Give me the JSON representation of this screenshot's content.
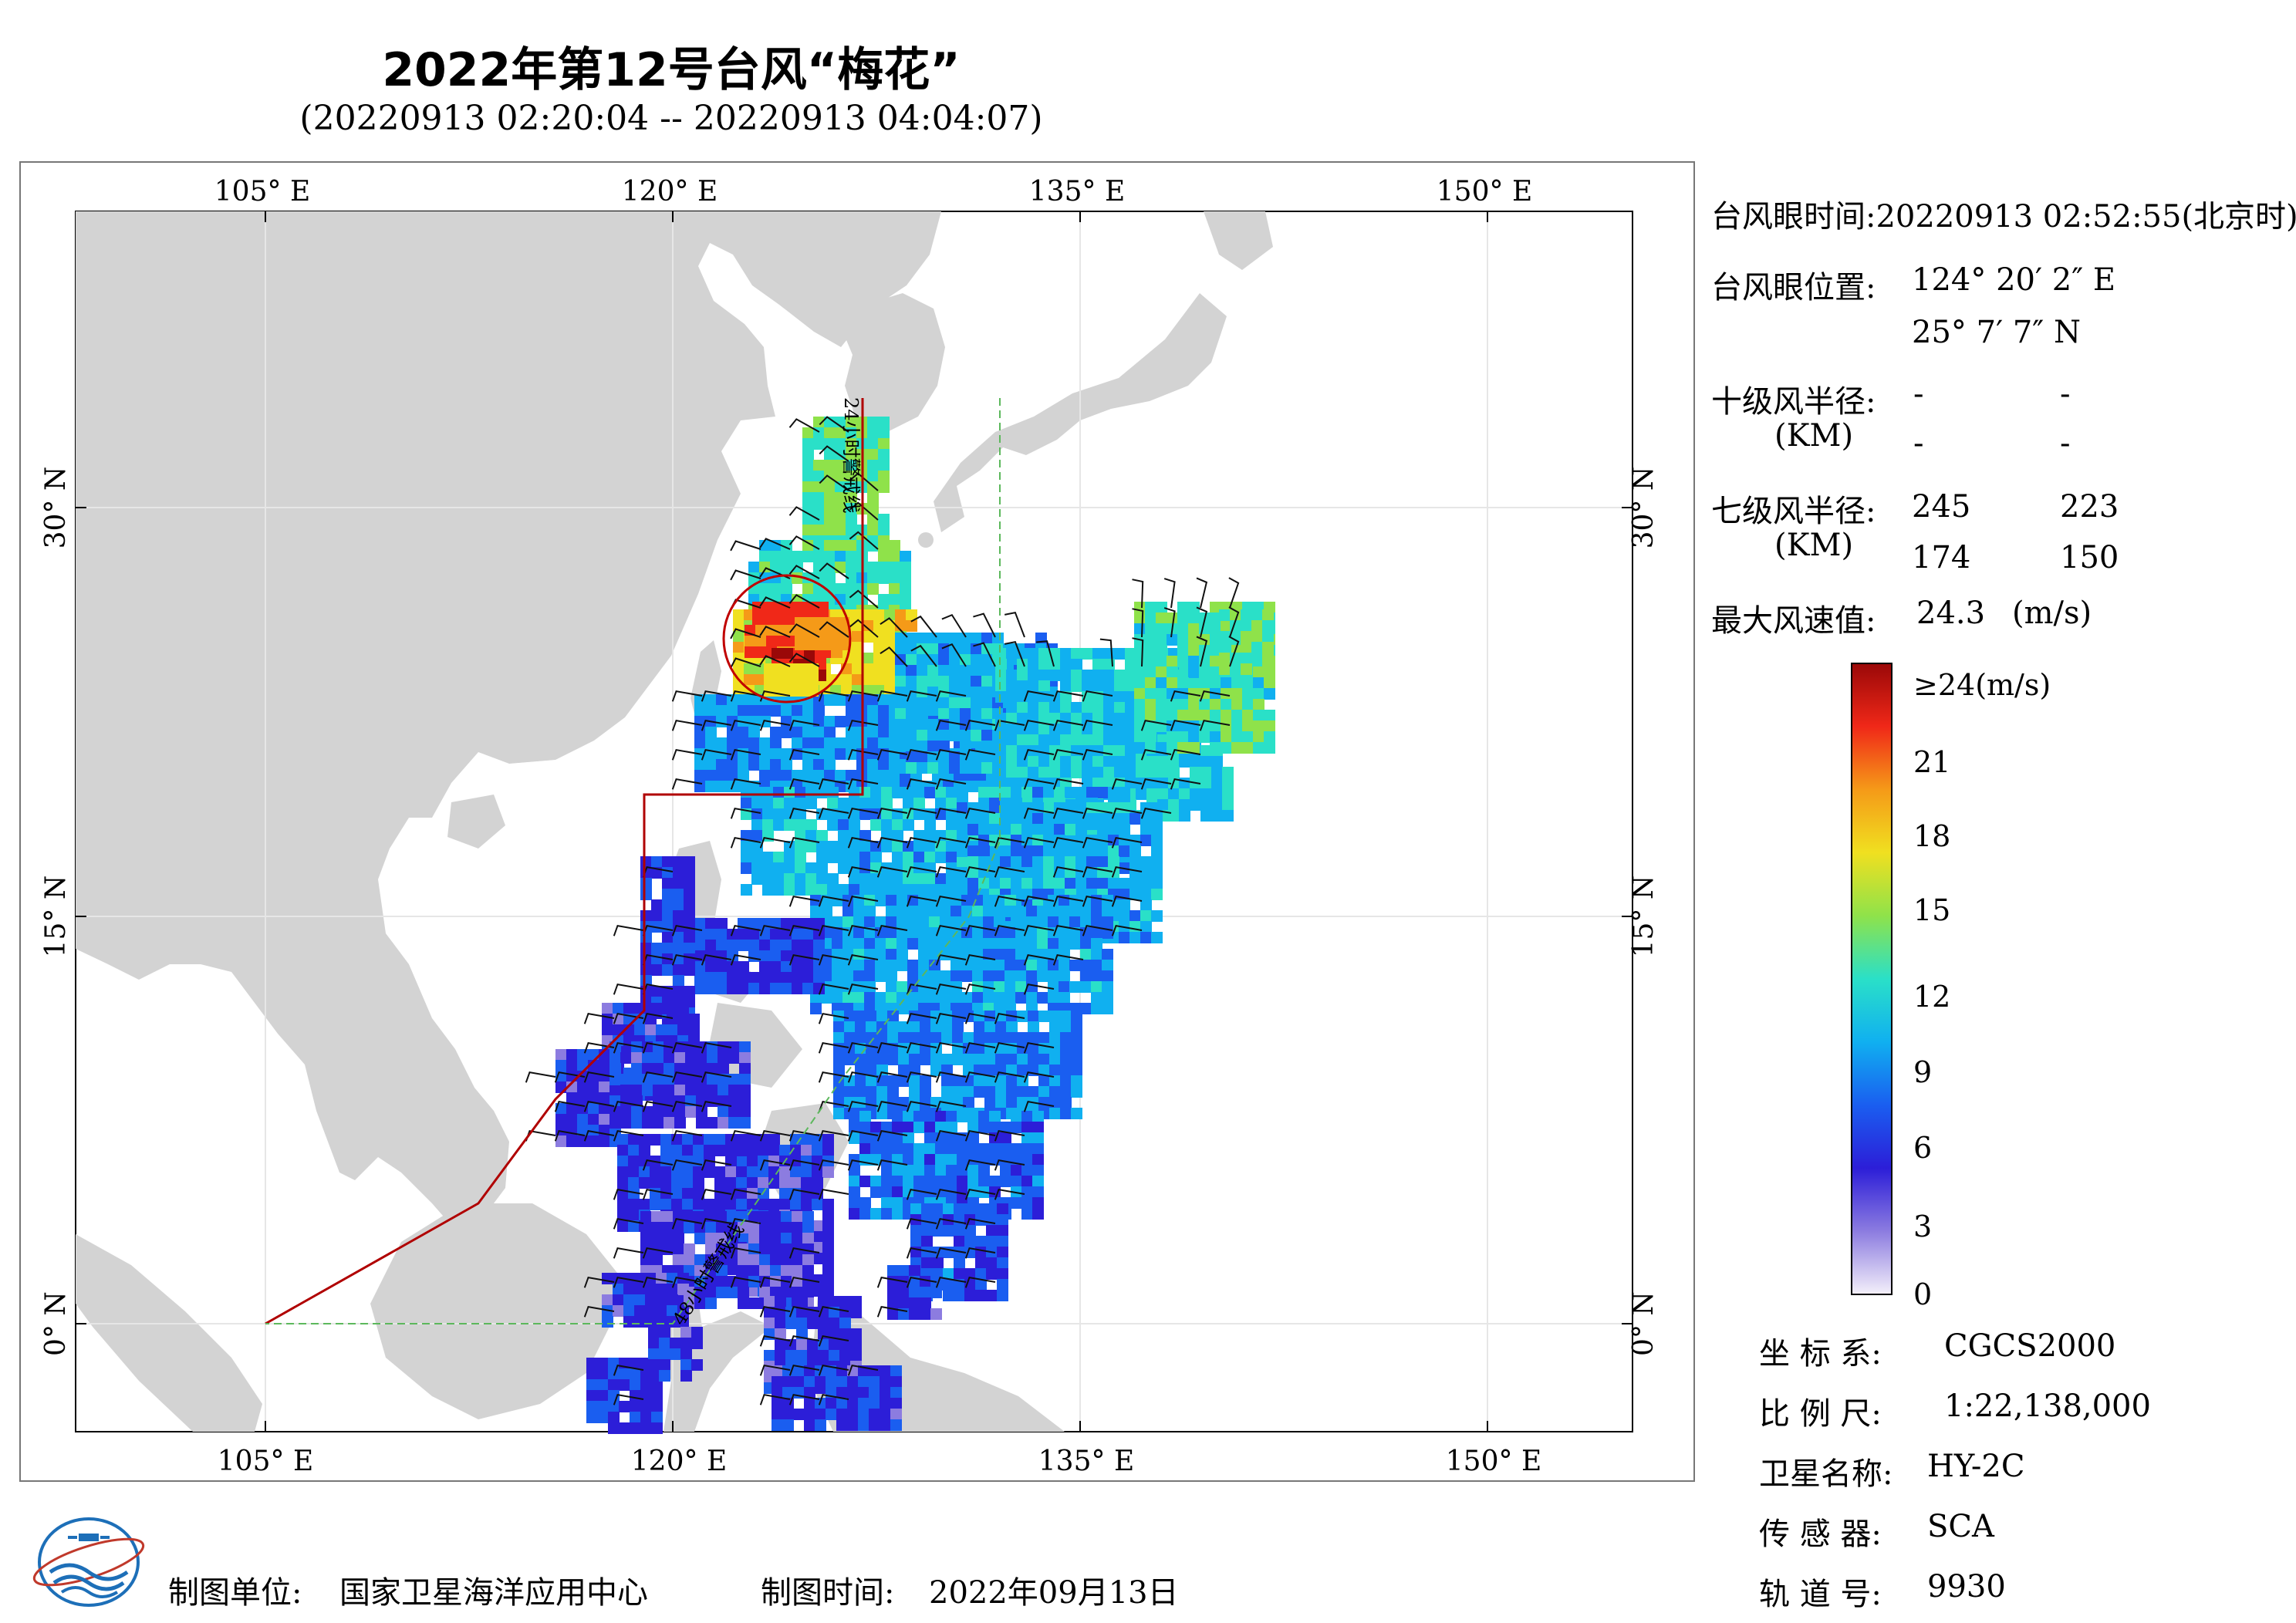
{
  "title": "2022年第12号台风“梅花”",
  "subtitle": "(20220913 02:20:04 -- 20220913 04:04:07)",
  "map": {
    "lon_ticks": [
      "105° E",
      "120° E",
      "135° E",
      "150° E"
    ],
    "lat_ticks": [
      "30° N",
      "15° N",
      "0° N"
    ],
    "line_label_24h": "24小时警戒线",
    "line_label_48h": "48小时警戒线"
  },
  "info": {
    "eye_time_label": "台风眼时间:",
    "eye_time_value": "20220913 02:52:55(北京时)",
    "eye_pos_label": "台风眼位置:",
    "eye_lon": "124° 20′ 2″ E",
    "eye_lat": "25° 7′ 7″ N",
    "r10_label": "十级风半径:",
    "r10_unit": "(KM)",
    "r10_values": [
      "-",
      "-",
      "-",
      "-"
    ],
    "r7_label": "七级风半径:",
    "r7_unit": "(KM)",
    "r7_values": [
      "245",
      "223",
      "174",
      "150"
    ],
    "max_wind_label": "最大风速值:",
    "max_wind_value": "24.3",
    "max_wind_unit": "(m/s)"
  },
  "colorbar": {
    "top_label": "≥24(m/s)",
    "labels": [
      "21",
      "18",
      "15",
      "12",
      "9",
      "6",
      "3",
      "0"
    ],
    "colors": [
      "#f4f0fa",
      "#8c7ce0",
      "#2c1ed8",
      "#1a5ef0",
      "#10b0f0",
      "#2ae0c8",
      "#8fe24a",
      "#f0e020",
      "#f59a18",
      "#f02818",
      "#9a0808"
    ]
  },
  "meta": {
    "crs_label": "坐 标 系:",
    "crs_value": "CGCS2000",
    "scale_label": "比 例 尺:",
    "scale_value": "1:22,138,000",
    "satellite_label": "卫星名称:",
    "satellite_value": "HY-2C",
    "sensor_label": "传 感 器:",
    "sensor_value": "SCA",
    "orbit_label": "轨 道 号:",
    "orbit_value": "9930"
  },
  "footer": {
    "org_label": "制图单位:",
    "org_value": "国家卫星海洋应用中心",
    "date_label": "制图时间:",
    "date_value": "2022年09月13日"
  }
}
